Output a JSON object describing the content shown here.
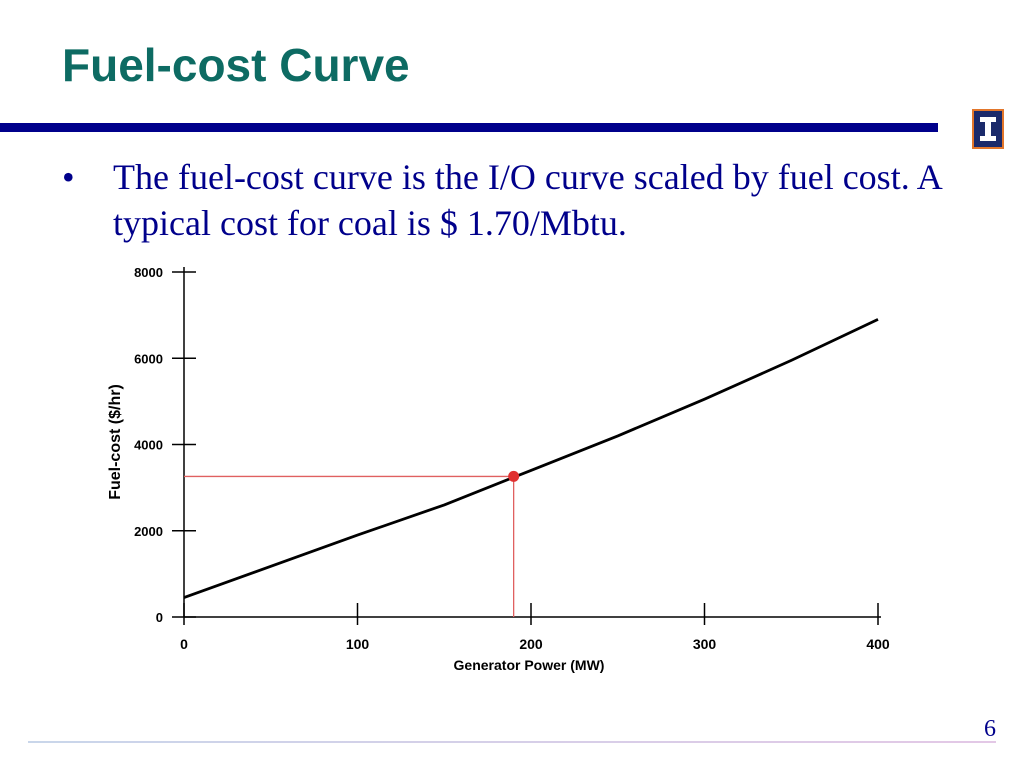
{
  "slide": {
    "title": "Fuel-cost Curve",
    "bullet_marker": "•",
    "bullet_text": "The fuel-cost curve is the I/O curve scaled by fuel cost.  A typical cost for coal is $ 1.70/Mbtu.",
    "page_number": "6"
  },
  "colors": {
    "title": "#0d6b63",
    "rule": "#00008b",
    "body_text": "#00008b",
    "curve": "#000000",
    "marker": "#e03030",
    "guide_lines": "#e06060"
  },
  "chart_data": {
    "type": "line",
    "xlabel": "Generator Power (MW)",
    "ylabel": "Fuel-cost ($/hr)",
    "xlim": [
      0,
      400
    ],
    "ylim": [
      0,
      8000
    ],
    "x_ticks": [
      "0",
      "100",
      "200",
      "300",
      "400"
    ],
    "y_ticks": [
      "0",
      "2000",
      "4000",
      "6000",
      "8000"
    ],
    "grid": false,
    "series": [
      {
        "x": [
          0,
          50,
          100,
          150,
          200,
          250,
          300,
          350,
          400
        ],
        "y": [
          450,
          1175,
          1900,
          2600,
          3400,
          4200,
          5050,
          5950,
          6900
        ]
      }
    ],
    "highlight_point": {
      "x": 190,
      "y": 3260
    }
  }
}
